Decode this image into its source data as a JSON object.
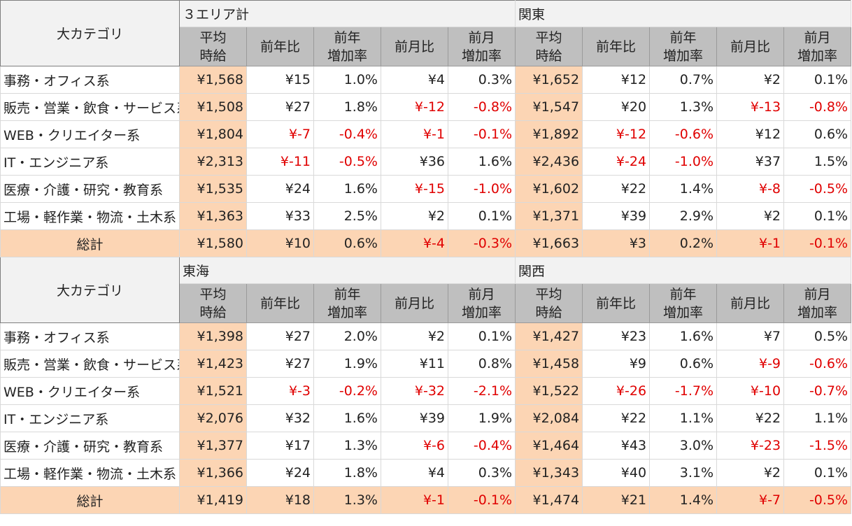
{
  "colors": {
    "highlight": "#fcd5b4",
    "negative": "#e00000",
    "subheader": "#bfbfbf",
    "header": "#f2f2f2"
  },
  "blocks": [
    {
      "category_header": "大カテゴリ",
      "area_left": "３エリア計",
      "area_right": "関東",
      "subheaders": [
        [
          "平均",
          "時給"
        ],
        [
          "前年比"
        ],
        [
          "前年",
          "増加率"
        ],
        [
          "前月比"
        ],
        [
          "前月",
          "増加率"
        ],
        [
          "平均",
          "時給"
        ],
        [
          "前年比"
        ],
        [
          "前年",
          "増加率"
        ],
        [
          "前月比"
        ],
        [
          "前月",
          "増加率"
        ]
      ],
      "rows": [
        {
          "label": "事務・オフィス系",
          "cells": [
            "¥1,568",
            "¥15",
            "1.0%",
            "¥4",
            "0.3%",
            "¥1,652",
            "¥12",
            "0.7%",
            "¥2",
            "0.1%"
          ]
        },
        {
          "label": "販売・営業・飲食・サービス系",
          "cells": [
            "¥1,508",
            "¥27",
            "1.8%",
            "¥-12",
            "-0.8%",
            "¥1,547",
            "¥20",
            "1.3%",
            "¥-13",
            "-0.8%"
          ]
        },
        {
          "label": "WEB・クリエイター系",
          "cells": [
            "¥1,804",
            "¥-7",
            "-0.4%",
            "¥-1",
            "-0.1%",
            "¥1,892",
            "¥-12",
            "-0.6%",
            "¥12",
            "0.6%"
          ]
        },
        {
          "label": "IT・エンジニア系",
          "cells": [
            "¥2,313",
            "¥-11",
            "-0.5%",
            "¥36",
            "1.6%",
            "¥2,436",
            "¥-24",
            "-1.0%",
            "¥37",
            "1.5%"
          ]
        },
        {
          "label": "医療・介護・研究・教育系",
          "cells": [
            "¥1,535",
            "¥24",
            "1.6%",
            "¥-15",
            "-1.0%",
            "¥1,602",
            "¥22",
            "1.4%",
            "¥-8",
            "-0.5%"
          ]
        },
        {
          "label": "工場・軽作業・物流・土木系",
          "cells": [
            "¥1,363",
            "¥33",
            "2.5%",
            "¥2",
            "0.1%",
            "¥1,371",
            "¥39",
            "2.9%",
            "¥2",
            "0.1%"
          ]
        }
      ],
      "total": {
        "label": "総計",
        "cells": [
          "¥1,580",
          "¥10",
          "0.6%",
          "¥-4",
          "-0.3%",
          "¥1,663",
          "¥3",
          "0.2%",
          "¥-1",
          "-0.1%"
        ]
      }
    },
    {
      "category_header": "大カテゴリ",
      "area_left": "東海",
      "area_right": "関西",
      "subheaders": [
        [
          "平均",
          "時給"
        ],
        [
          "前年比"
        ],
        [
          "前年",
          "増加率"
        ],
        [
          "前月比"
        ],
        [
          "前月",
          "増加率"
        ],
        [
          "平均",
          "時給"
        ],
        [
          "前年比"
        ],
        [
          "前年",
          "増加率"
        ],
        [
          "前月比"
        ],
        [
          "前月",
          "増加率"
        ]
      ],
      "rows": [
        {
          "label": "事務・オフィス系",
          "cells": [
            "¥1,398",
            "¥27",
            "2.0%",
            "¥2",
            "0.1%",
            "¥1,427",
            "¥23",
            "1.6%",
            "¥7",
            "0.5%"
          ]
        },
        {
          "label": "販売・営業・飲食・サービス系",
          "cells": [
            "¥1,423",
            "¥27",
            "1.9%",
            "¥11",
            "0.8%",
            "¥1,458",
            "¥9",
            "0.6%",
            "¥-9",
            "-0.6%"
          ]
        },
        {
          "label": "WEB・クリエイター系",
          "cells": [
            "¥1,521",
            "¥-3",
            "-0.2%",
            "¥-32",
            "-2.1%",
            "¥1,522",
            "¥-26",
            "-1.7%",
            "¥-10",
            "-0.7%"
          ]
        },
        {
          "label": "IT・エンジニア系",
          "cells": [
            "¥2,076",
            "¥32",
            "1.6%",
            "¥39",
            "1.9%",
            "¥2,084",
            "¥22",
            "1.1%",
            "¥22",
            "1.1%"
          ]
        },
        {
          "label": "医療・介護・研究・教育系",
          "cells": [
            "¥1,377",
            "¥17",
            "1.3%",
            "¥-6",
            "-0.4%",
            "¥1,464",
            "¥43",
            "3.0%",
            "¥-23",
            "-1.5%"
          ]
        },
        {
          "label": "工場・軽作業・物流・土木系",
          "cells": [
            "¥1,366",
            "¥24",
            "1.8%",
            "¥4",
            "0.3%",
            "¥1,343",
            "¥40",
            "3.1%",
            "¥2",
            "0.1%"
          ]
        }
      ],
      "total": {
        "label": "総計",
        "cells": [
          "¥1,419",
          "¥18",
          "1.3%",
          "¥-1",
          "-0.1%",
          "¥1,474",
          "¥21",
          "1.4%",
          "¥-7",
          "-0.5%"
        ]
      }
    }
  ]
}
